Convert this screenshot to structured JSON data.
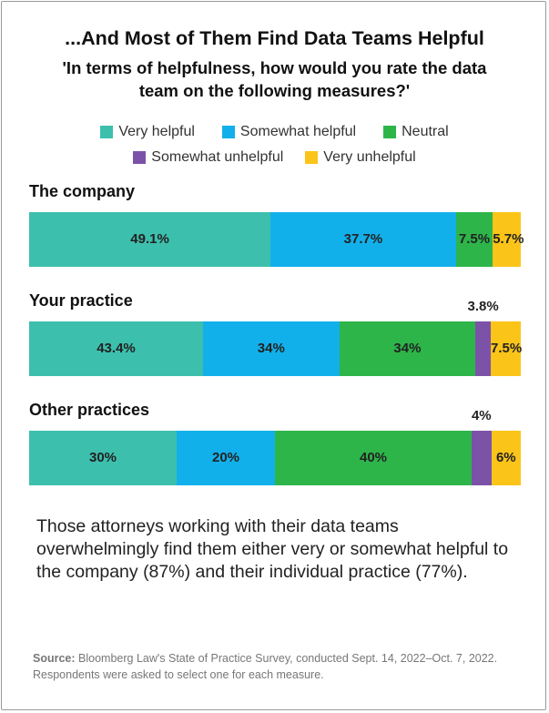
{
  "chart_data": {
    "type": "bar",
    "stacked": true,
    "orientation": "horizontal",
    "title": "...And Most of Them Find Data Teams Helpful",
    "subtitle": "'In terms of helpfulness, how would you rate the data team on the following measures?'",
    "categories": [
      "The company",
      "Your practice",
      "Other practices"
    ],
    "series": [
      {
        "name": "Very helpful",
        "color": "#3dbfad",
        "values": [
          49.1,
          43.4,
          30
        ],
        "labels": [
          "49.1%",
          "43.4%",
          "30%"
        ]
      },
      {
        "name": "Somewhat helpful",
        "color": "#12b0ea",
        "values": [
          37.7,
          34,
          20
        ],
        "labels": [
          "37.7%",
          "34%",
          "20%"
        ]
      },
      {
        "name": "Neutral",
        "color": "#2db54a",
        "values": [
          7.5,
          34,
          40
        ],
        "labels": [
          "7.5%",
          "34%",
          "40%"
        ]
      },
      {
        "name": "Somewhat unhelpful",
        "color": "#7c52a8",
        "values": [
          0,
          3.8,
          4
        ],
        "labels": [
          "",
          "3.8%",
          "4%"
        ]
      },
      {
        "name": "Very unhelpful",
        "color": "#fbc419",
        "values": [
          5.7,
          7.5,
          6
        ],
        "labels": [
          "5.7%",
          "7.5%",
          "6%"
        ]
      }
    ],
    "legend": "top"
  },
  "note": "Those attorneys working with their data teams overwhelmingly find them either very or somewhat helpful to the company (87%) and their individual practice (77%).",
  "source": {
    "label": "Source:",
    "text": "Bloomberg Law's State of Practice Survey, conducted Sept. 14, 2022–Oct. 7, 2022. Respondents were asked to select one for each measure."
  }
}
